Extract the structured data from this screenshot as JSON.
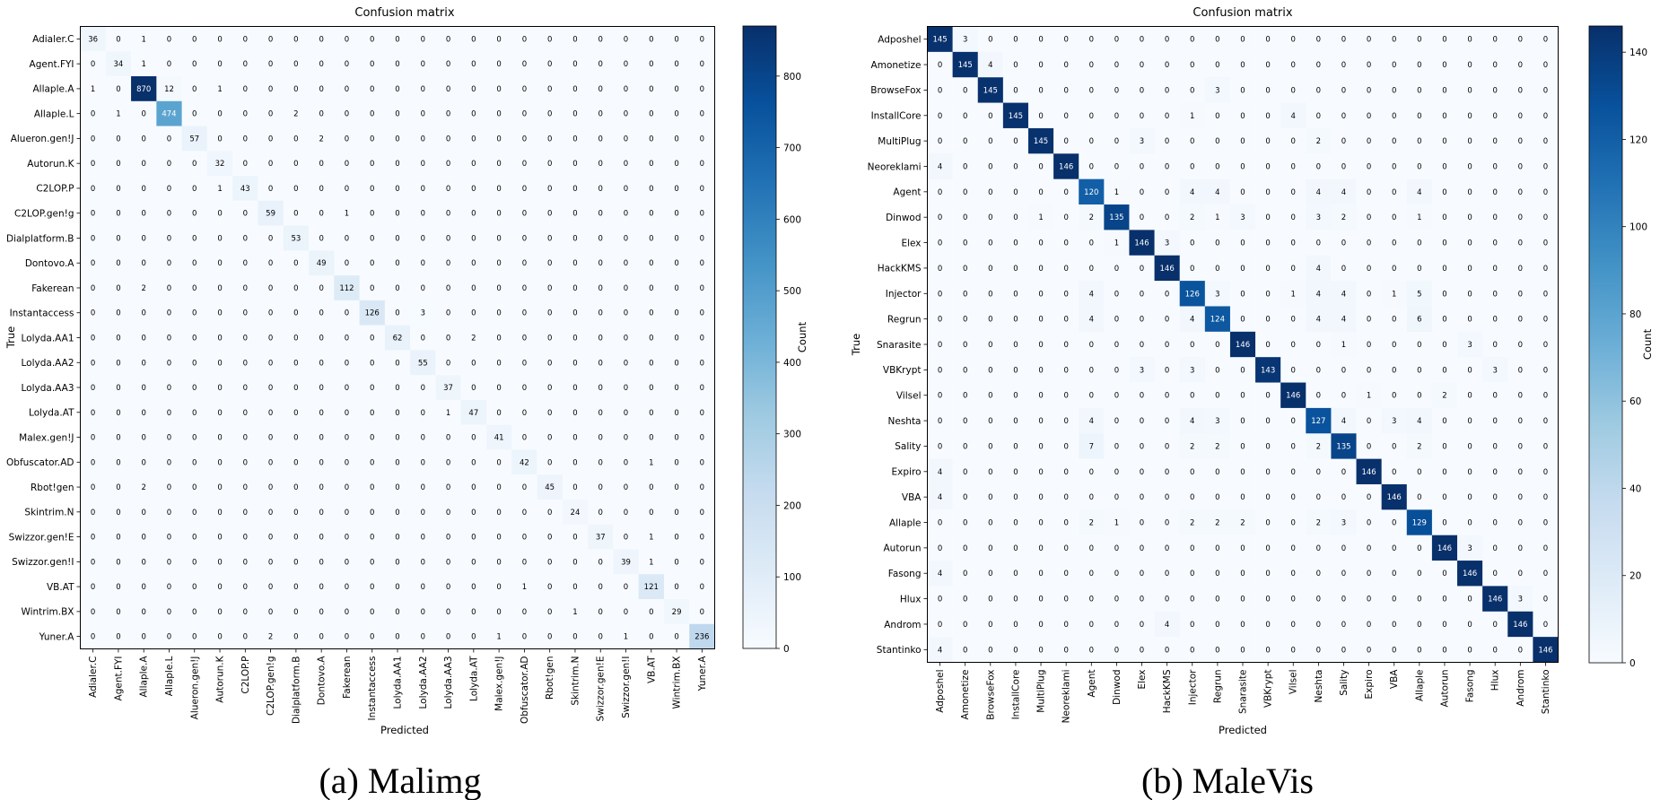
{
  "chart_data": [
    {
      "type": "heatmap",
      "title": "Confusion matrix",
      "xlabel": "Predicted",
      "ylabel": "True",
      "caption": "(a) Malimg",
      "colorbar": {
        "label": "Count",
        "range": [
          0,
          870
        ],
        "ticks": [
          0,
          100,
          200,
          300,
          400,
          500,
          600,
          700,
          800
        ]
      },
      "labels": [
        "Adialer.C",
        "Agent.FYI",
        "Allaple.A",
        "Allaple.L",
        "Alueron.gen!J",
        "Autorun.K",
        "C2LOP.P",
        "C2LOP.gen!g",
        "Dialplatform.B",
        "Dontovo.A",
        "Fakerean",
        "Instantaccess",
        "Lolyda.AA1",
        "Lolyda.AA2",
        "Lolyda.AA3",
        "Lolyda.AT",
        "Malex.gen!J",
        "Obfuscator.AD",
        "Rbot!gen",
        "Skintrim.N",
        "Swizzor.gen!E",
        "Swizzor.gen!I",
        "VB.AT",
        "Wintrim.BX",
        "Yuner.A"
      ],
      "matrix": [
        [
          36,
          0,
          1,
          0,
          0,
          0,
          0,
          0,
          0,
          0,
          0,
          0,
          0,
          0,
          0,
          0,
          0,
          0,
          0,
          0,
          0,
          0,
          0,
          0,
          0
        ],
        [
          0,
          34,
          1,
          0,
          0,
          0,
          0,
          0,
          0,
          0,
          0,
          0,
          0,
          0,
          0,
          0,
          0,
          0,
          0,
          0,
          0,
          0,
          0,
          0,
          0
        ],
        [
          1,
          0,
          870,
          12,
          0,
          1,
          0,
          0,
          0,
          0,
          0,
          0,
          0,
          0,
          0,
          0,
          0,
          0,
          0,
          0,
          0,
          0,
          0,
          0,
          0
        ],
        [
          0,
          1,
          0,
          474,
          0,
          0,
          0,
          0,
          2,
          0,
          0,
          0,
          0,
          0,
          0,
          0,
          0,
          0,
          0,
          0,
          0,
          0,
          0,
          0,
          0
        ],
        [
          0,
          0,
          0,
          0,
          57,
          0,
          0,
          0,
          0,
          2,
          0,
          0,
          0,
          0,
          0,
          0,
          0,
          0,
          0,
          0,
          0,
          0,
          0,
          0,
          0
        ],
        [
          0,
          0,
          0,
          0,
          0,
          32,
          0,
          0,
          0,
          0,
          0,
          0,
          0,
          0,
          0,
          0,
          0,
          0,
          0,
          0,
          0,
          0,
          0,
          0,
          0
        ],
        [
          0,
          0,
          0,
          0,
          0,
          1,
          43,
          0,
          0,
          0,
          0,
          0,
          0,
          0,
          0,
          0,
          0,
          0,
          0,
          0,
          0,
          0,
          0,
          0,
          0
        ],
        [
          0,
          0,
          0,
          0,
          0,
          0,
          0,
          59,
          0,
          0,
          1,
          0,
          0,
          0,
          0,
          0,
          0,
          0,
          0,
          0,
          0,
          0,
          0,
          0,
          0
        ],
        [
          0,
          0,
          0,
          0,
          0,
          0,
          0,
          0,
          53,
          0,
          0,
          0,
          0,
          0,
          0,
          0,
          0,
          0,
          0,
          0,
          0,
          0,
          0,
          0,
          0
        ],
        [
          0,
          0,
          0,
          0,
          0,
          0,
          0,
          0,
          0,
          49,
          0,
          0,
          0,
          0,
          0,
          0,
          0,
          0,
          0,
          0,
          0,
          0,
          0,
          0,
          0
        ],
        [
          0,
          0,
          2,
          0,
          0,
          0,
          0,
          0,
          0,
          0,
          112,
          0,
          0,
          0,
          0,
          0,
          0,
          0,
          0,
          0,
          0,
          0,
          0,
          0,
          0
        ],
        [
          0,
          0,
          0,
          0,
          0,
          0,
          0,
          0,
          0,
          0,
          0,
          126,
          0,
          3,
          0,
          0,
          0,
          0,
          0,
          0,
          0,
          0,
          0,
          0,
          0
        ],
        [
          0,
          0,
          0,
          0,
          0,
          0,
          0,
          0,
          0,
          0,
          0,
          0,
          62,
          0,
          0,
          2,
          0,
          0,
          0,
          0,
          0,
          0,
          0,
          0,
          0
        ],
        [
          0,
          0,
          0,
          0,
          0,
          0,
          0,
          0,
          0,
          0,
          0,
          0,
          0,
          55,
          0,
          0,
          0,
          0,
          0,
          0,
          0,
          0,
          0,
          0,
          0
        ],
        [
          0,
          0,
          0,
          0,
          0,
          0,
          0,
          0,
          0,
          0,
          0,
          0,
          0,
          0,
          37,
          0,
          0,
          0,
          0,
          0,
          0,
          0,
          0,
          0,
          0
        ],
        [
          0,
          0,
          0,
          0,
          0,
          0,
          0,
          0,
          0,
          0,
          0,
          0,
          0,
          0,
          1,
          47,
          0,
          0,
          0,
          0,
          0,
          0,
          0,
          0,
          0
        ],
        [
          0,
          0,
          0,
          0,
          0,
          0,
          0,
          0,
          0,
          0,
          0,
          0,
          0,
          0,
          0,
          0,
          41,
          0,
          0,
          0,
          0,
          0,
          0,
          0,
          0
        ],
        [
          0,
          0,
          0,
          0,
          0,
          0,
          0,
          0,
          0,
          0,
          0,
          0,
          0,
          0,
          0,
          0,
          0,
          42,
          0,
          0,
          0,
          0,
          1,
          0,
          0
        ],
        [
          0,
          0,
          2,
          0,
          0,
          0,
          0,
          0,
          0,
          0,
          0,
          0,
          0,
          0,
          0,
          0,
          0,
          0,
          45,
          0,
          0,
          0,
          0,
          0,
          0
        ],
        [
          0,
          0,
          0,
          0,
          0,
          0,
          0,
          0,
          0,
          0,
          0,
          0,
          0,
          0,
          0,
          0,
          0,
          0,
          0,
          24,
          0,
          0,
          0,
          0,
          0
        ],
        [
          0,
          0,
          0,
          0,
          0,
          0,
          0,
          0,
          0,
          0,
          0,
          0,
          0,
          0,
          0,
          0,
          0,
          0,
          0,
          0,
          37,
          0,
          1,
          0,
          0
        ],
        [
          0,
          0,
          0,
          0,
          0,
          0,
          0,
          0,
          0,
          0,
          0,
          0,
          0,
          0,
          0,
          0,
          0,
          0,
          0,
          0,
          0,
          39,
          1,
          0,
          0
        ],
        [
          0,
          0,
          0,
          0,
          0,
          0,
          0,
          0,
          0,
          0,
          0,
          0,
          0,
          0,
          0,
          0,
          0,
          1,
          0,
          0,
          0,
          0,
          121,
          0,
          0
        ],
        [
          0,
          0,
          0,
          0,
          0,
          0,
          0,
          0,
          0,
          0,
          0,
          0,
          0,
          0,
          0,
          0,
          0,
          0,
          0,
          1,
          0,
          0,
          0,
          29,
          0
        ],
        [
          0,
          0,
          0,
          0,
          0,
          0,
          0,
          2,
          0,
          0,
          0,
          0,
          0,
          0,
          0,
          0,
          1,
          0,
          0,
          0,
          0,
          1,
          0,
          0,
          236
        ]
      ]
    },
    {
      "type": "heatmap",
      "title": "Confusion matrix",
      "xlabel": "Predicted",
      "ylabel": "True",
      "caption": "(b) MaleVis",
      "colorbar": {
        "label": "Count",
        "range": [
          0,
          146
        ],
        "ticks": [
          0,
          20,
          40,
          60,
          80,
          100,
          120,
          140
        ]
      },
      "labels": [
        "Adposhel",
        "Amonetize",
        "BrowseFox",
        "InstallCore",
        "MultiPlug",
        "Neoreklami",
        "Agent",
        "Dinwod",
        "Elex",
        "HackKMS",
        "Injector",
        "Regrun",
        "Snarasite",
        "VBKrypt",
        "Vilsel",
        "Neshta",
        "Sality",
        "Expiro",
        "VBA",
        "Allaple",
        "Autorun",
        "Fasong",
        "Hlux",
        "Androm",
        "Stantinko"
      ],
      "matrix": [
        [
          145,
          3,
          0,
          0,
          0,
          0,
          0,
          0,
          0,
          0,
          0,
          0,
          0,
          0,
          0,
          0,
          0,
          0,
          0,
          0,
          0,
          0,
          0,
          0,
          0
        ],
        [
          0,
          145,
          4,
          0,
          0,
          0,
          0,
          0,
          0,
          0,
          0,
          0,
          0,
          0,
          0,
          0,
          0,
          0,
          0,
          0,
          0,
          0,
          0,
          0,
          0
        ],
        [
          0,
          0,
          145,
          0,
          0,
          0,
          0,
          0,
          0,
          0,
          0,
          3,
          0,
          0,
          0,
          0,
          0,
          0,
          0,
          0,
          0,
          0,
          0,
          0,
          0
        ],
        [
          0,
          0,
          0,
          145,
          0,
          0,
          0,
          0,
          0,
          0,
          1,
          0,
          0,
          0,
          4,
          0,
          0,
          0,
          0,
          0,
          0,
          0,
          0,
          0,
          0
        ],
        [
          0,
          0,
          0,
          0,
          145,
          0,
          0,
          0,
          3,
          0,
          0,
          0,
          0,
          0,
          0,
          2,
          0,
          0,
          0,
          0,
          0,
          0,
          0,
          0,
          0
        ],
        [
          4,
          0,
          0,
          0,
          0,
          146,
          0,
          0,
          0,
          0,
          0,
          0,
          0,
          0,
          0,
          0,
          0,
          0,
          0,
          0,
          0,
          0,
          0,
          0,
          0
        ],
        [
          0,
          0,
          0,
          0,
          0,
          0,
          120,
          1,
          0,
          0,
          4,
          4,
          0,
          0,
          0,
          4,
          4,
          0,
          0,
          4,
          0,
          0,
          0,
          0,
          0
        ],
        [
          0,
          0,
          0,
          0,
          1,
          0,
          2,
          135,
          0,
          0,
          2,
          1,
          3,
          0,
          0,
          3,
          2,
          0,
          0,
          1,
          0,
          0,
          0,
          0,
          0
        ],
        [
          0,
          0,
          0,
          0,
          0,
          0,
          0,
          1,
          146,
          3,
          0,
          0,
          0,
          0,
          0,
          0,
          0,
          0,
          0,
          0,
          0,
          0,
          0,
          0,
          0
        ],
        [
          0,
          0,
          0,
          0,
          0,
          0,
          0,
          0,
          0,
          146,
          0,
          0,
          0,
          0,
          0,
          4,
          0,
          0,
          0,
          0,
          0,
          0,
          0,
          0,
          0
        ],
        [
          0,
          0,
          0,
          0,
          0,
          0,
          4,
          0,
          0,
          0,
          126,
          3,
          0,
          0,
          1,
          4,
          4,
          0,
          1,
          5,
          0,
          0,
          0,
          0,
          0
        ],
        [
          0,
          0,
          0,
          0,
          0,
          0,
          4,
          0,
          0,
          0,
          4,
          124,
          0,
          0,
          0,
          4,
          4,
          0,
          0,
          6,
          0,
          0,
          0,
          0,
          0
        ],
        [
          0,
          0,
          0,
          0,
          0,
          0,
          0,
          0,
          0,
          0,
          0,
          0,
          146,
          0,
          0,
          0,
          1,
          0,
          0,
          0,
          0,
          3,
          0,
          0,
          0
        ],
        [
          0,
          0,
          0,
          0,
          0,
          0,
          0,
          0,
          3,
          0,
          3,
          0,
          0,
          143,
          0,
          0,
          0,
          0,
          0,
          0,
          0,
          0,
          3,
          0,
          0
        ],
        [
          0,
          0,
          0,
          0,
          0,
          0,
          0,
          0,
          0,
          0,
          0,
          0,
          0,
          0,
          146,
          0,
          0,
          1,
          0,
          0,
          2,
          0,
          0,
          0,
          0
        ],
        [
          0,
          0,
          0,
          0,
          0,
          0,
          4,
          0,
          0,
          0,
          4,
          3,
          0,
          0,
          0,
          127,
          4,
          0,
          3,
          4,
          0,
          0,
          0,
          0,
          0
        ],
        [
          0,
          0,
          0,
          0,
          0,
          0,
          7,
          0,
          0,
          0,
          2,
          2,
          0,
          0,
          0,
          2,
          135,
          0,
          0,
          2,
          0,
          0,
          0,
          0,
          0
        ],
        [
          4,
          0,
          0,
          0,
          0,
          0,
          0,
          0,
          0,
          0,
          0,
          0,
          0,
          0,
          0,
          0,
          0,
          146,
          0,
          0,
          0,
          0,
          0,
          0,
          0
        ],
        [
          4,
          0,
          0,
          0,
          0,
          0,
          0,
          0,
          0,
          0,
          0,
          0,
          0,
          0,
          0,
          0,
          0,
          0,
          146,
          0,
          0,
          0,
          0,
          0,
          0
        ],
        [
          0,
          0,
          0,
          0,
          0,
          0,
          2,
          1,
          0,
          0,
          2,
          2,
          2,
          0,
          0,
          2,
          3,
          0,
          0,
          129,
          0,
          0,
          0,
          0,
          0
        ],
        [
          0,
          0,
          0,
          0,
          0,
          0,
          0,
          0,
          0,
          0,
          0,
          0,
          0,
          0,
          0,
          0,
          0,
          0,
          0,
          0,
          146,
          3,
          0,
          0,
          0
        ],
        [
          4,
          0,
          0,
          0,
          0,
          0,
          0,
          0,
          0,
          0,
          0,
          0,
          0,
          0,
          0,
          0,
          0,
          0,
          0,
          0,
          0,
          146,
          0,
          0,
          0
        ],
        [
          0,
          0,
          0,
          0,
          0,
          0,
          0,
          0,
          0,
          0,
          0,
          0,
          0,
          0,
          0,
          0,
          0,
          0,
          0,
          0,
          0,
          0,
          146,
          3,
          0
        ],
        [
          0,
          0,
          0,
          0,
          0,
          0,
          0,
          0,
          0,
          4,
          0,
          0,
          0,
          0,
          0,
          0,
          0,
          0,
          0,
          0,
          0,
          0,
          0,
          146,
          0
        ],
        [
          4,
          0,
          0,
          0,
          0,
          0,
          0,
          0,
          0,
          0,
          0,
          0,
          0,
          0,
          0,
          0,
          0,
          0,
          0,
          0,
          0,
          0,
          0,
          0,
          146
        ]
      ]
    }
  ]
}
